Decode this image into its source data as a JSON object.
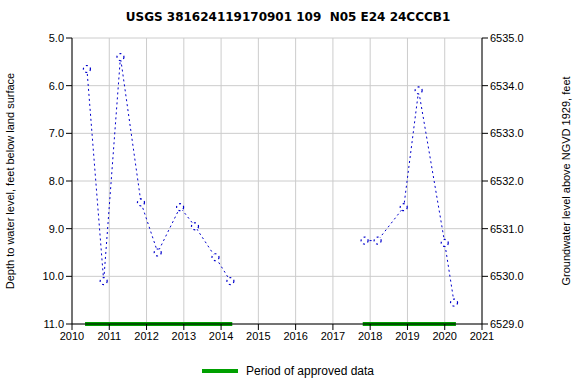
{
  "chart_data": {
    "type": "line",
    "title": "USGS 381624119170901 109  N05 E24 24CCCB1",
    "x": [
      2010.4,
      2010.85,
      2011.3,
      2011.85,
      2012.3,
      2012.9,
      2013.3,
      2013.85,
      2014.25,
      2016.0,
      2017.85,
      2018.2,
      2018.9,
      2019.3,
      2020.0,
      2020.25
    ],
    "values": [
      5.65,
      10.1,
      5.4,
      8.45,
      9.5,
      8.55,
      8.95,
      9.6,
      10.1,
      null,
      9.25,
      9.25,
      8.55,
      6.1,
      9.3,
      10.55
    ],
    "color": "#0000cc",
    "marker": "circle",
    "line_style": "dotted",
    "xlim": [
      2010,
      2021
    ],
    "xticks": [
      2010,
      2011,
      2012,
      2013,
      2014,
      2015,
      2016,
      2017,
      2018,
      2019,
      2020,
      2021
    ],
    "ylim": [
      5,
      11
    ],
    "yticks": [
      {
        "value": 5,
        "label": "5.0"
      },
      {
        "value": 6,
        "label": "6.0"
      },
      {
        "value": 7,
        "label": "7.0"
      },
      {
        "value": 8,
        "label": "8.0"
      },
      {
        "value": 9,
        "label": "9.0"
      },
      {
        "value": 10,
        "label": "10.0"
      },
      {
        "value": 11,
        "label": "11.0"
      }
    ],
    "y_label": "Depth to water level, feet below land surface",
    "y2lim": [
      6529,
      6535
    ],
    "y2ticks": [
      {
        "value": 6529,
        "label": "6529.0"
      },
      {
        "value": 6530,
        "label": "6530.0"
      },
      {
        "value": 6531,
        "label": "6531.0"
      },
      {
        "value": 6532,
        "label": "6532.0"
      },
      {
        "value": 6533,
        "label": "6533.0"
      },
      {
        "value": 6534,
        "label": "6534.0"
      },
      {
        "value": 6535,
        "label": "6535.0"
      }
    ],
    "y2_label": "Groundwater level above NGVD 1929, feet",
    "grid": true,
    "approved_periods": {
      "name": "Period of approved data",
      "color": "#00a000",
      "ranges": [
        [
          2010.35,
          2014.3
        ],
        [
          2017.8,
          2020.3
        ]
      ]
    }
  }
}
